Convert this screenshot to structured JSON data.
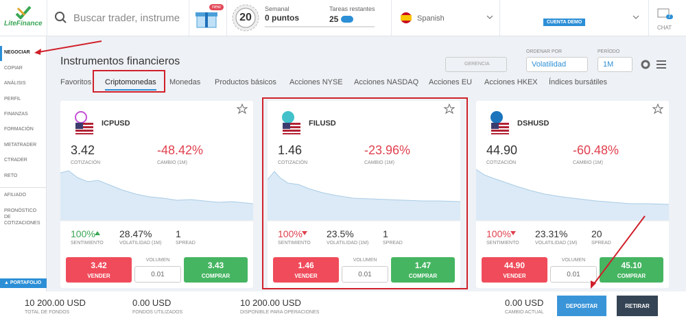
{
  "header": {
    "logo": "LiteFinance",
    "search_placeholder": "Buscar trader, instrume",
    "gift_badge": "new",
    "level": "20",
    "weekly_label": "Semanal",
    "points": "0 puntos",
    "tasks_label": "Tareas restantes",
    "tasks_count": "25",
    "language": "Spanish",
    "account": "CUENTA DEMO",
    "chat_count": "7",
    "chat_label": "CHAT"
  },
  "sidebar": {
    "items": [
      "NEGOCIAR",
      "COPIAR",
      "ANÁLISIS",
      "PERFIL",
      "FINANZAS",
      "FORMACIÓN",
      "METATRADER",
      "CTRADER",
      "RETO"
    ],
    "extra": [
      "AFILIADO",
      "PRONÓSTICO DE COTIZACIONES"
    ],
    "portfolio": "PORTAFOLIO"
  },
  "main": {
    "title": "Instrumentos financieros",
    "manage": "GERENCIA",
    "sort_label": "ORDENAR POR",
    "sort_value": "Volatilidad",
    "period_label": "PERÍODO",
    "period_value": "1M",
    "tabs": [
      "Favoritos",
      "Criptomonedas",
      "Monedas",
      "Productos básicos",
      "Acciones NYSE",
      "Acciones NASDAQ",
      "Acciones EU",
      "Acciones HKEX",
      "Índices bursátiles"
    ],
    "labels": {
      "quote": "COTIZACIÓN",
      "change": "CAMBIO (1M)",
      "sentiment": "SENTIMIENTO",
      "volatility": "VOLATILIDAD (1M)",
      "spread": "SPREAD",
      "sell": "VENDER",
      "volume": "VOLUMEN",
      "buy": "COMPRAR"
    },
    "cards": [
      {
        "symbol": "ICPUSD",
        "price": "3.42",
        "change": "-48.42%",
        "sentiment": "100%",
        "sentiment_trend": "up",
        "volatility": "28.47%",
        "spread": "1",
        "sell": "3.42",
        "volume": "0.01",
        "buy": "3.43"
      },
      {
        "symbol": "FILUSD",
        "price": "1.46",
        "change": "-23.96%",
        "sentiment": "100%",
        "sentiment_trend": "down",
        "volatility": "23.5%",
        "spread": "1",
        "sell": "1.46",
        "volume": "0.01",
        "buy": "1.47"
      },
      {
        "symbol": "DSHUSD",
        "price": "44.90",
        "change": "-60.48%",
        "sentiment": "100%",
        "sentiment_trend": "down",
        "volatility": "23.31%",
        "spread": "20",
        "sell": "44.90",
        "volume": "0.01",
        "buy": "45.10"
      }
    ]
  },
  "footer": {
    "stats": [
      {
        "value": "10 200.00 USD",
        "label": "TOTAL DE FONDOS"
      },
      {
        "value": "0.00 USD",
        "label": "FONDOS UTILIZADOS"
      },
      {
        "value": "10 200.00 USD",
        "label": "DISPONIBLE PARA OPERACIONES"
      },
      {
        "value": "0.00 USD",
        "label": "CAMBIO ACTUAL"
      }
    ],
    "deposit": "DEPOSITAR",
    "withdraw": "RETIRAR"
  }
}
